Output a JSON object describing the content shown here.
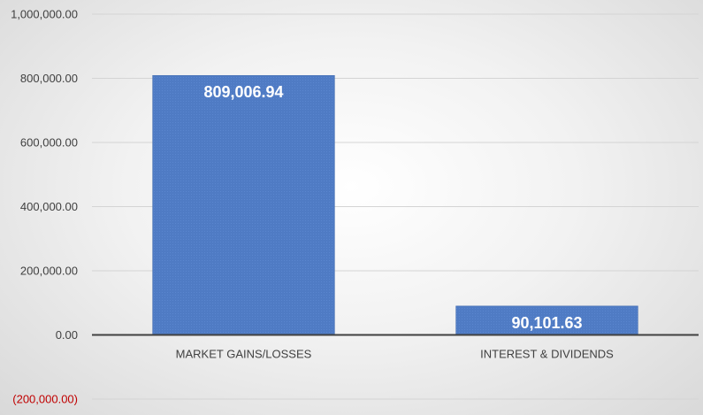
{
  "chart_data": {
    "type": "bar",
    "categories": [
      "MARKET GAINS/LOSSES",
      "INTEREST & DIVIDENDS"
    ],
    "values": [
      809006.94,
      90101.63
    ],
    "data_labels": [
      "809,006.94",
      "90,101.63"
    ],
    "title": "",
    "xlabel": "",
    "ylabel": "",
    "ylim": [
      -200000,
      1000000
    ],
    "y_ticks": [
      {
        "value": 1000000,
        "label": "1,000,000.00",
        "negative": false
      },
      {
        "value": 800000,
        "label": "800,000.00",
        "negative": false
      },
      {
        "value": 600000,
        "label": "600,000.00",
        "negative": false
      },
      {
        "value": 400000,
        "label": "400,000.00",
        "negative": false
      },
      {
        "value": 200000,
        "label": "200,000.00",
        "negative": false
      },
      {
        "value": 0,
        "label": "0.00",
        "negative": false
      },
      {
        "value": -200000,
        "label": "(200,000.00)",
        "negative": true
      }
    ],
    "grid": true,
    "legend": "none",
    "colors": {
      "bar": "#4f7bc4",
      "bar_stroke": "#416aad",
      "grid": "#d4d4d4",
      "axis": "#404040",
      "negative_tick": "#c00000"
    }
  }
}
